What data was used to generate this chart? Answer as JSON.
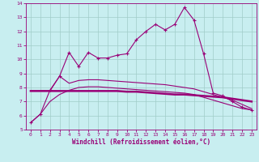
{
  "title": "",
  "xlabel": "Windchill (Refroidissement éolien,°C)",
  "ylabel": "",
  "xlim": [
    -0.5,
    23.5
  ],
  "ylim": [
    5,
    14
  ],
  "yticks": [
    5,
    6,
    7,
    8,
    9,
    10,
    11,
    12,
    13,
    14
  ],
  "xticks": [
    0,
    1,
    2,
    3,
    4,
    5,
    6,
    7,
    8,
    9,
    10,
    11,
    12,
    13,
    14,
    15,
    16,
    17,
    18,
    19,
    20,
    21,
    22,
    23
  ],
  "background_color": "#c8eef0",
  "grid_color": "#a0ccc8",
  "line_color": "#990077",
  "series": {
    "jagged": {
      "x": [
        0,
        1,
        2,
        3,
        4,
        5,
        6,
        7,
        8,
        9,
        10,
        11,
        12,
        13,
        14,
        15,
        16,
        17,
        18,
        19,
        20,
        21,
        22,
        23
      ],
      "y": [
        5.5,
        6.1,
        7.8,
        8.8,
        10.5,
        9.5,
        10.5,
        10.1,
        10.1,
        10.3,
        10.4,
        11.4,
        12.0,
        12.5,
        12.1,
        12.5,
        13.7,
        12.8,
        10.4,
        7.6,
        7.4,
        7.0,
        6.6,
        6.4
      ]
    },
    "flat": {
      "x": [
        0,
        1,
        2,
        3,
        4,
        5,
        6,
        7,
        8,
        9,
        10,
        11,
        12,
        13,
        14,
        15,
        16,
        17,
        18,
        19,
        20,
        21,
        22,
        23
      ],
      "y": [
        7.75,
        7.75,
        7.75,
        7.75,
        7.75,
        7.75,
        7.75,
        7.75,
        7.75,
        7.75,
        7.7,
        7.7,
        7.65,
        7.6,
        7.55,
        7.5,
        7.5,
        7.45,
        7.4,
        7.35,
        7.3,
        7.2,
        7.1,
        7.0
      ]
    },
    "rising": {
      "x": [
        0,
        1,
        2,
        3,
        4,
        5,
        6,
        7,
        8,
        9,
        10,
        11,
        12,
        13,
        14,
        15,
        16,
        17,
        18,
        19,
        20,
        21,
        22,
        23
      ],
      "y": [
        7.75,
        7.75,
        7.75,
        8.8,
        8.3,
        8.5,
        8.55,
        8.55,
        8.5,
        8.45,
        8.4,
        8.35,
        8.3,
        8.25,
        8.2,
        8.1,
        8.0,
        7.9,
        7.7,
        7.5,
        7.3,
        7.1,
        6.8,
        6.5
      ]
    },
    "smooth": {
      "x": [
        0,
        1,
        2,
        3,
        4,
        5,
        6,
        7,
        8,
        9,
        10,
        11,
        12,
        13,
        14,
        15,
        16,
        17,
        18,
        19,
        20,
        21,
        22,
        23
      ],
      "y": [
        5.5,
        6.1,
        7.0,
        7.5,
        7.8,
        8.0,
        8.05,
        8.05,
        8.0,
        7.95,
        7.9,
        7.85,
        7.8,
        7.75,
        7.7,
        7.65,
        7.6,
        7.5,
        7.3,
        7.1,
        6.9,
        6.7,
        6.5,
        6.4
      ]
    }
  }
}
